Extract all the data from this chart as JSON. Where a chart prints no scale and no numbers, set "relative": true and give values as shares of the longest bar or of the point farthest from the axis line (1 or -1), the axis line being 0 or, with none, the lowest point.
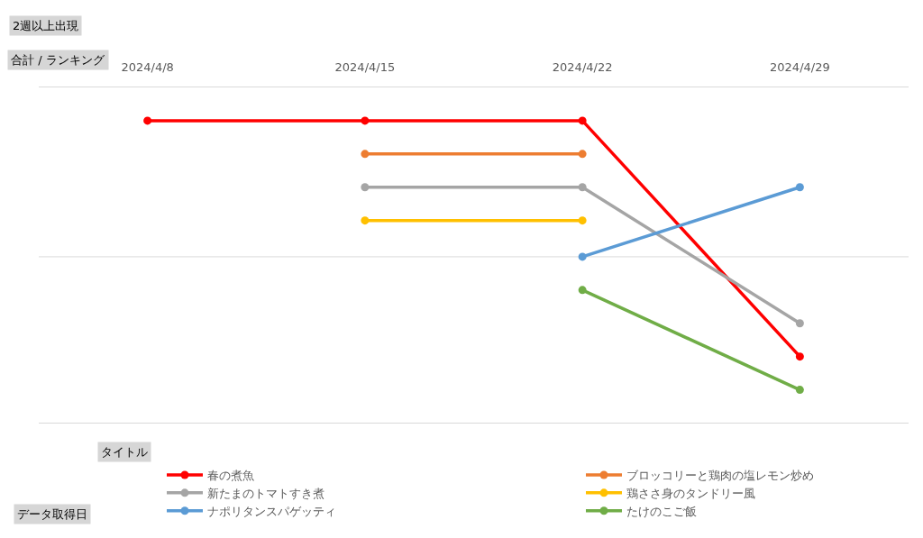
{
  "chart_data": {
    "type": "line",
    "title": "2週以上出現",
    "ylabel": "合計 / ランキング",
    "legend_title": "タイトル",
    "annotations": [
      "データ取得日"
    ],
    "categories": [
      "2024/4/8",
      "2024/4/15",
      "2024/4/22",
      "2024/4/29"
    ],
    "relative": true,
    "series": [
      {
        "name": "春の煮魚",
        "color": "#ff0000",
        "values": [
          -0.11,
          -0.11,
          -0.11,
          -0.89
        ]
      },
      {
        "name": "ブロッコリーと鶏肉の塩レモン炒め",
        "color": "#ed7d31",
        "values": [
          null,
          -0.22,
          -0.22,
          null
        ]
      },
      {
        "name": "新たまのトマトすき煮",
        "color": "#a5a5a5",
        "values": [
          null,
          -0.33,
          -0.33,
          -0.78
        ]
      },
      {
        "name": "鶏ささ身のタンドリー風",
        "color": "#ffc000",
        "values": [
          null,
          -0.44,
          -0.44,
          null
        ]
      },
      {
        "name": "ナポリタンスパゲッティ",
        "color": "#5b9bd5",
        "values": [
          null,
          null,
          -0.56,
          -0.33
        ]
      },
      {
        "name": "たけのこご飯",
        "color": "#70ad47",
        "values": [
          null,
          null,
          -0.67,
          -1
        ]
      }
    ],
    "ref_lines": [
      {
        "axis": "y",
        "value": -0.56,
        "color": "#d9d9d9"
      },
      {
        "axis": "y",
        "value": -1.11,
        "color": "#d9d9d9"
      }
    ],
    "legend": "bottom",
    "marker": "circle",
    "line_style": "solid"
  }
}
